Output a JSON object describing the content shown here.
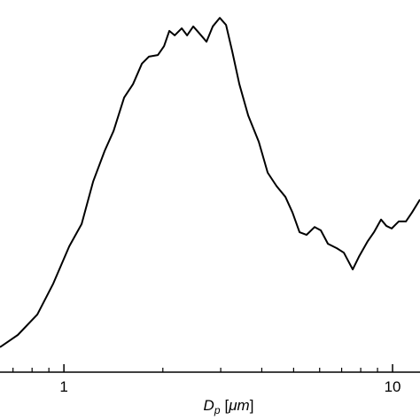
{
  "chart_data": {
    "type": "line",
    "x_label_parts": [
      "D",
      "p",
      "[",
      "μm",
      "]"
    ],
    "log_x": true,
    "xlim": [
      0.639,
      12.12
    ],
    "xticks": [
      1,
      10
    ],
    "xminorticks": [
      0.7,
      0.8,
      0.9,
      2,
      3,
      4,
      5,
      6,
      7,
      8,
      9
    ],
    "ylim": [
      0,
      1
    ],
    "color": "#000000",
    "x": [
      0.639,
      0.724,
      0.83,
      0.928,
      1.038,
      1.132,
      1.227,
      1.331,
      1.416,
      1.525,
      1.623,
      1.727,
      1.815,
      1.931,
      2.017,
      2.093,
      2.173,
      2.283,
      2.37,
      2.475,
      2.585,
      2.716,
      2.837,
      2.981,
      3.114,
      3.252,
      3.418,
      3.636,
      3.917,
      4.169,
      4.436,
      4.72,
      4.96,
      5.212,
      5.476,
      5.793,
      6.05,
      6.358,
      6.765,
      7.109,
      7.564,
      7.9,
      8.405,
      8.778,
      9.226,
      9.575,
      9.938,
      10.44,
      10.98,
      11.46,
      12.12
    ],
    "values": [
      0.067,
      0.1,
      0.155,
      0.238,
      0.338,
      0.398,
      0.512,
      0.595,
      0.648,
      0.738,
      0.774,
      0.829,
      0.848,
      0.852,
      0.876,
      0.917,
      0.905,
      0.924,
      0.905,
      0.929,
      0.91,
      0.888,
      0.929,
      0.952,
      0.933,
      0.862,
      0.774,
      0.69,
      0.619,
      0.536,
      0.5,
      0.471,
      0.429,
      0.376,
      0.369,
      0.39,
      0.381,
      0.345,
      0.333,
      0.321,
      0.276,
      0.31,
      0.352,
      0.376,
      0.41,
      0.393,
      0.386,
      0.405,
      0.405,
      0.429,
      0.464
    ]
  }
}
